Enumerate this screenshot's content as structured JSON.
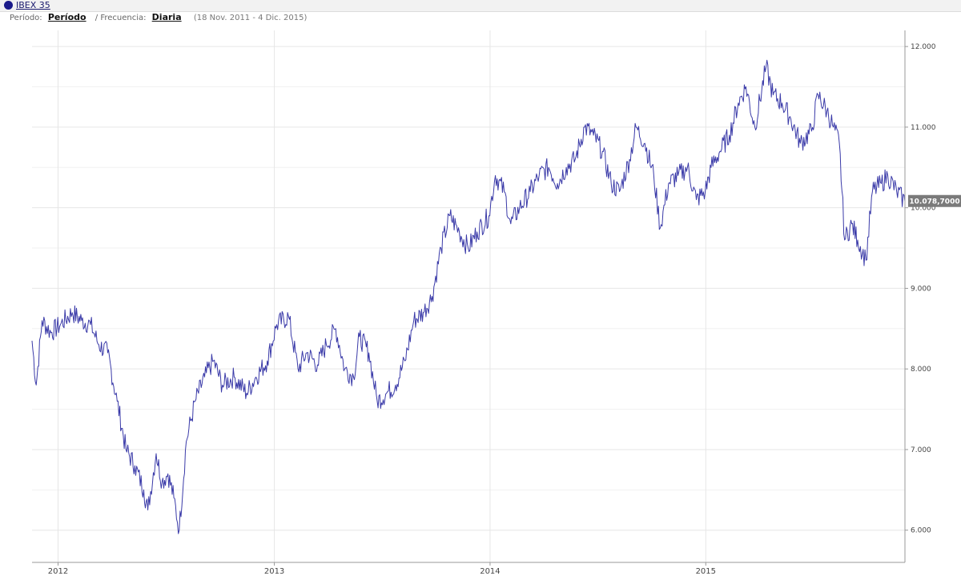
{
  "header": {
    "series_name": "IBEX 35",
    "period_label": "Período:",
    "period_value": "Período",
    "frequency_label": "/ Frecuencia:",
    "frequency_value": "Diaria",
    "date_range": "(18 Nov. 2011 - 4 Dic. 2015)"
  },
  "colors": {
    "line": "#3a3aa8",
    "grid": "#e6e6e6",
    "badge": "#7a7a7a",
    "series_dot": "#1b1b8a"
  },
  "last_value_label": "10.078,7000",
  "chart_data": {
    "type": "line",
    "title": "",
    "xlabel": "",
    "ylabel": "",
    "ylim": [
      5600,
      12200
    ],
    "y_ticks": [
      6000,
      7000,
      8000,
      9000,
      10000,
      11000,
      12000
    ],
    "y_tick_labels": [
      "6.000",
      "7.000",
      "8.000",
      "9.000",
      "10.000",
      "11.000",
      "12.000"
    ],
    "x_ticks": [
      "2012-01-01",
      "2013-01-01",
      "2014-01-01",
      "2015-01-01"
    ],
    "x_tick_labels": [
      "2012",
      "2013",
      "2014",
      "2015"
    ],
    "x_range": [
      "2011-11-18",
      "2015-12-04"
    ],
    "grid": true,
    "last_value": 10078.7,
    "series": [
      {
        "name": "IBEX 35",
        "x": [
          "2011-11-18",
          "2011-11-25",
          "2011-12-05",
          "2011-12-20",
          "2012-01-05",
          "2012-01-25",
          "2012-02-10",
          "2012-02-25",
          "2012-03-10",
          "2012-03-25",
          "2012-04-10",
          "2012-04-25",
          "2012-05-10",
          "2012-05-25",
          "2012-06-01",
          "2012-06-15",
          "2012-06-25",
          "2012-07-05",
          "2012-07-15",
          "2012-07-24",
          "2012-08-05",
          "2012-08-20",
          "2012-09-05",
          "2012-09-20",
          "2012-10-05",
          "2012-10-25",
          "2012-11-15",
          "2012-12-01",
          "2012-12-20",
          "2013-01-05",
          "2013-01-25",
          "2013-02-10",
          "2013-02-25",
          "2013-03-15",
          "2013-03-30",
          "2013-04-15",
          "2013-04-30",
          "2013-05-15",
          "2013-05-25",
          "2013-06-10",
          "2013-06-24",
          "2013-07-10",
          "2013-07-25",
          "2013-08-10",
          "2013-08-25",
          "2013-09-10",
          "2013-09-25",
          "2013-10-10",
          "2013-10-25",
          "2013-11-10",
          "2013-11-25",
          "2013-12-10",
          "2013-12-30",
          "2014-01-10",
          "2014-01-25",
          "2014-02-05",
          "2014-02-20",
          "2014-03-10",
          "2014-03-25",
          "2014-04-10",
          "2014-04-25",
          "2014-05-10",
          "2014-05-25",
          "2014-06-10",
          "2014-06-25",
          "2014-07-10",
          "2014-07-25",
          "2014-08-08",
          "2014-08-25",
          "2014-09-05",
          "2014-09-20",
          "2014-10-05",
          "2014-10-16",
          "2014-10-30",
          "2014-11-15",
          "2014-12-01",
          "2014-12-16",
          "2014-12-31",
          "2015-01-10",
          "2015-01-25",
          "2015-02-10",
          "2015-02-25",
          "2015-03-10",
          "2015-03-25",
          "2015-04-13",
          "2015-04-25",
          "2015-05-10",
          "2015-05-25",
          "2015-06-10",
          "2015-06-29",
          "2015-07-10",
          "2015-07-25",
          "2015-08-05",
          "2015-08-15",
          "2015-08-24",
          "2015-09-05",
          "2015-09-15",
          "2015-09-29",
          "2015-10-10",
          "2015-10-25",
          "2015-11-05",
          "2015-11-20",
          "2015-12-04"
        ],
        "values": [
          8350,
          7800,
          8600,
          8450,
          8550,
          8700,
          8600,
          8550,
          8300,
          8200,
          7600,
          7000,
          6800,
          6500,
          6250,
          6950,
          6600,
          6700,
          6400,
          6000,
          7100,
          7600,
          7900,
          8100,
          7800,
          7900,
          7700,
          7900,
          8100,
          8550,
          8650,
          8000,
          8200,
          8050,
          8300,
          8500,
          8000,
          7900,
          8400,
          8200,
          7600,
          7700,
          7800,
          8100,
          8600,
          8700,
          8900,
          9500,
          9900,
          9700,
          9500,
          9700,
          9900,
          10400,
          10200,
          9800,
          10000,
          10200,
          10400,
          10500,
          10300,
          10500,
          10600,
          11000,
          10900,
          10700,
          10300,
          10200,
          10600,
          11000,
          10800,
          10400,
          9750,
          10300,
          10400,
          10500,
          10100,
          10200,
          10500,
          10700,
          10900,
          11300,
          11500,
          11000,
          11750,
          11400,
          11300,
          11100,
          10800,
          10950,
          11400,
          11200,
          11000,
          10800,
          9600,
          9800,
          9600,
          9350,
          10200,
          10300,
          10400,
          10200,
          10078.7
        ]
      }
    ]
  }
}
